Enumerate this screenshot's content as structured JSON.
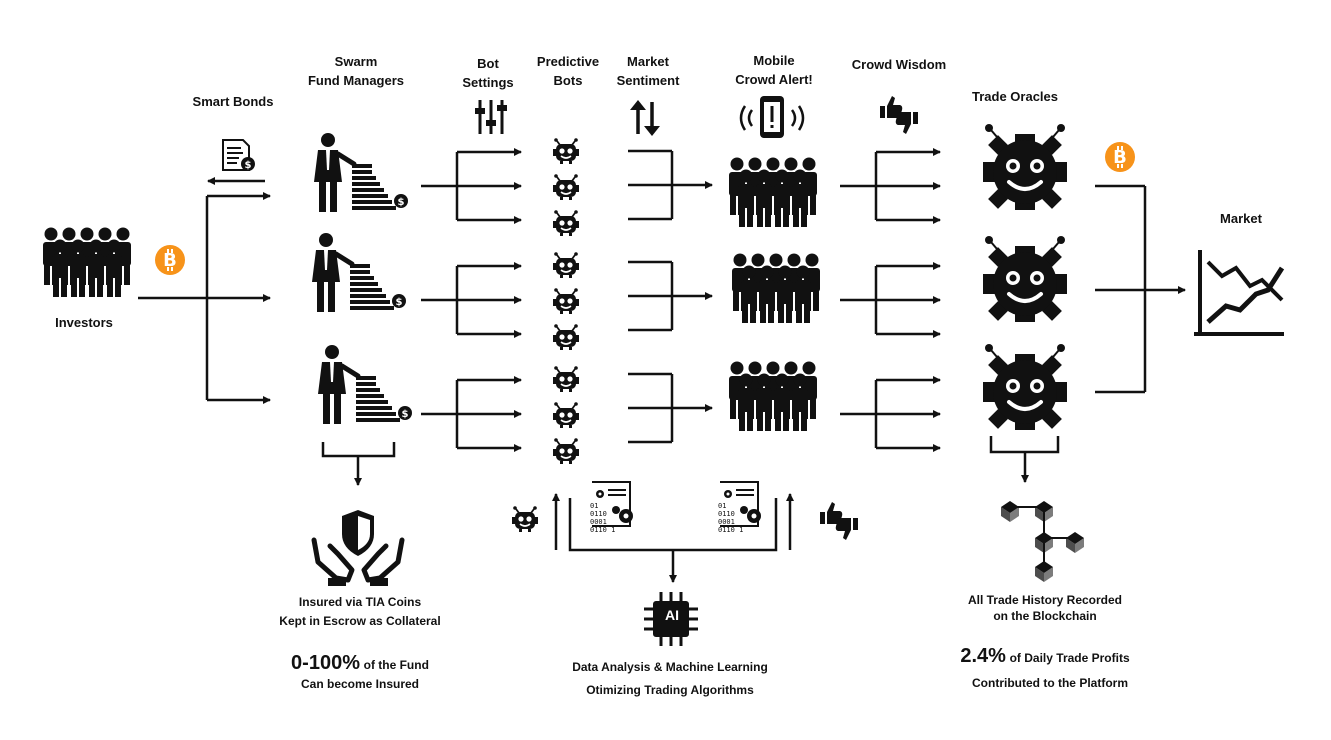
{
  "headers": {
    "smart_bonds": "Smart Bonds",
    "swarm_l1": "Swarm",
    "swarm_l2": "Fund Managers",
    "bot_l1": "Bot",
    "bot_l2": "Settings",
    "pred_l1": "Predictive",
    "pred_l2": "Bots",
    "market_l1": "Market",
    "market_l2": "Sentiment",
    "mobile_l1": "Mobile",
    "mobile_l2": "Crowd Alert!",
    "crowd": "Crowd Wisdom",
    "oracles": "Trade Oracles",
    "market": "Market",
    "investors": "Investors"
  },
  "insurance": {
    "line1": "Insured via TIA Coins",
    "line2": "Kept in Escrow as Collateral",
    "percent": "0-100%",
    "percent_suffix": "of the Fund",
    "line3": "Can become Insured"
  },
  "ai": {
    "chip_label": "AI",
    "line1": "Data Analysis & Machine Learning",
    "line2": "Otimizing Trading Algorithms",
    "code_lines": [
      "01",
      "0110",
      "0001",
      "0110 1"
    ]
  },
  "blockchain": {
    "line1": "All Trade History Recorded",
    "line2": "on the Blockchain",
    "percent": "2.4%",
    "percent_suffix": "of Daily Trade Profits",
    "line3": "Contributed to the Platform"
  },
  "colors": {
    "bitcoin": "#F7931A",
    "ink": "#111111"
  },
  "icons": [
    "bitcoin-icon",
    "bond-document-icon",
    "fund-manager-icon",
    "sliders-icon",
    "bot-icon",
    "up-down-arrows-icon",
    "phone-alert-icon",
    "thumbs-icon",
    "crowd-icon",
    "oracle-robot-icon",
    "market-chart-icon",
    "insurance-hands-icon",
    "ai-chip-icon",
    "blockchain-icon",
    "code-sheet-icon"
  ]
}
